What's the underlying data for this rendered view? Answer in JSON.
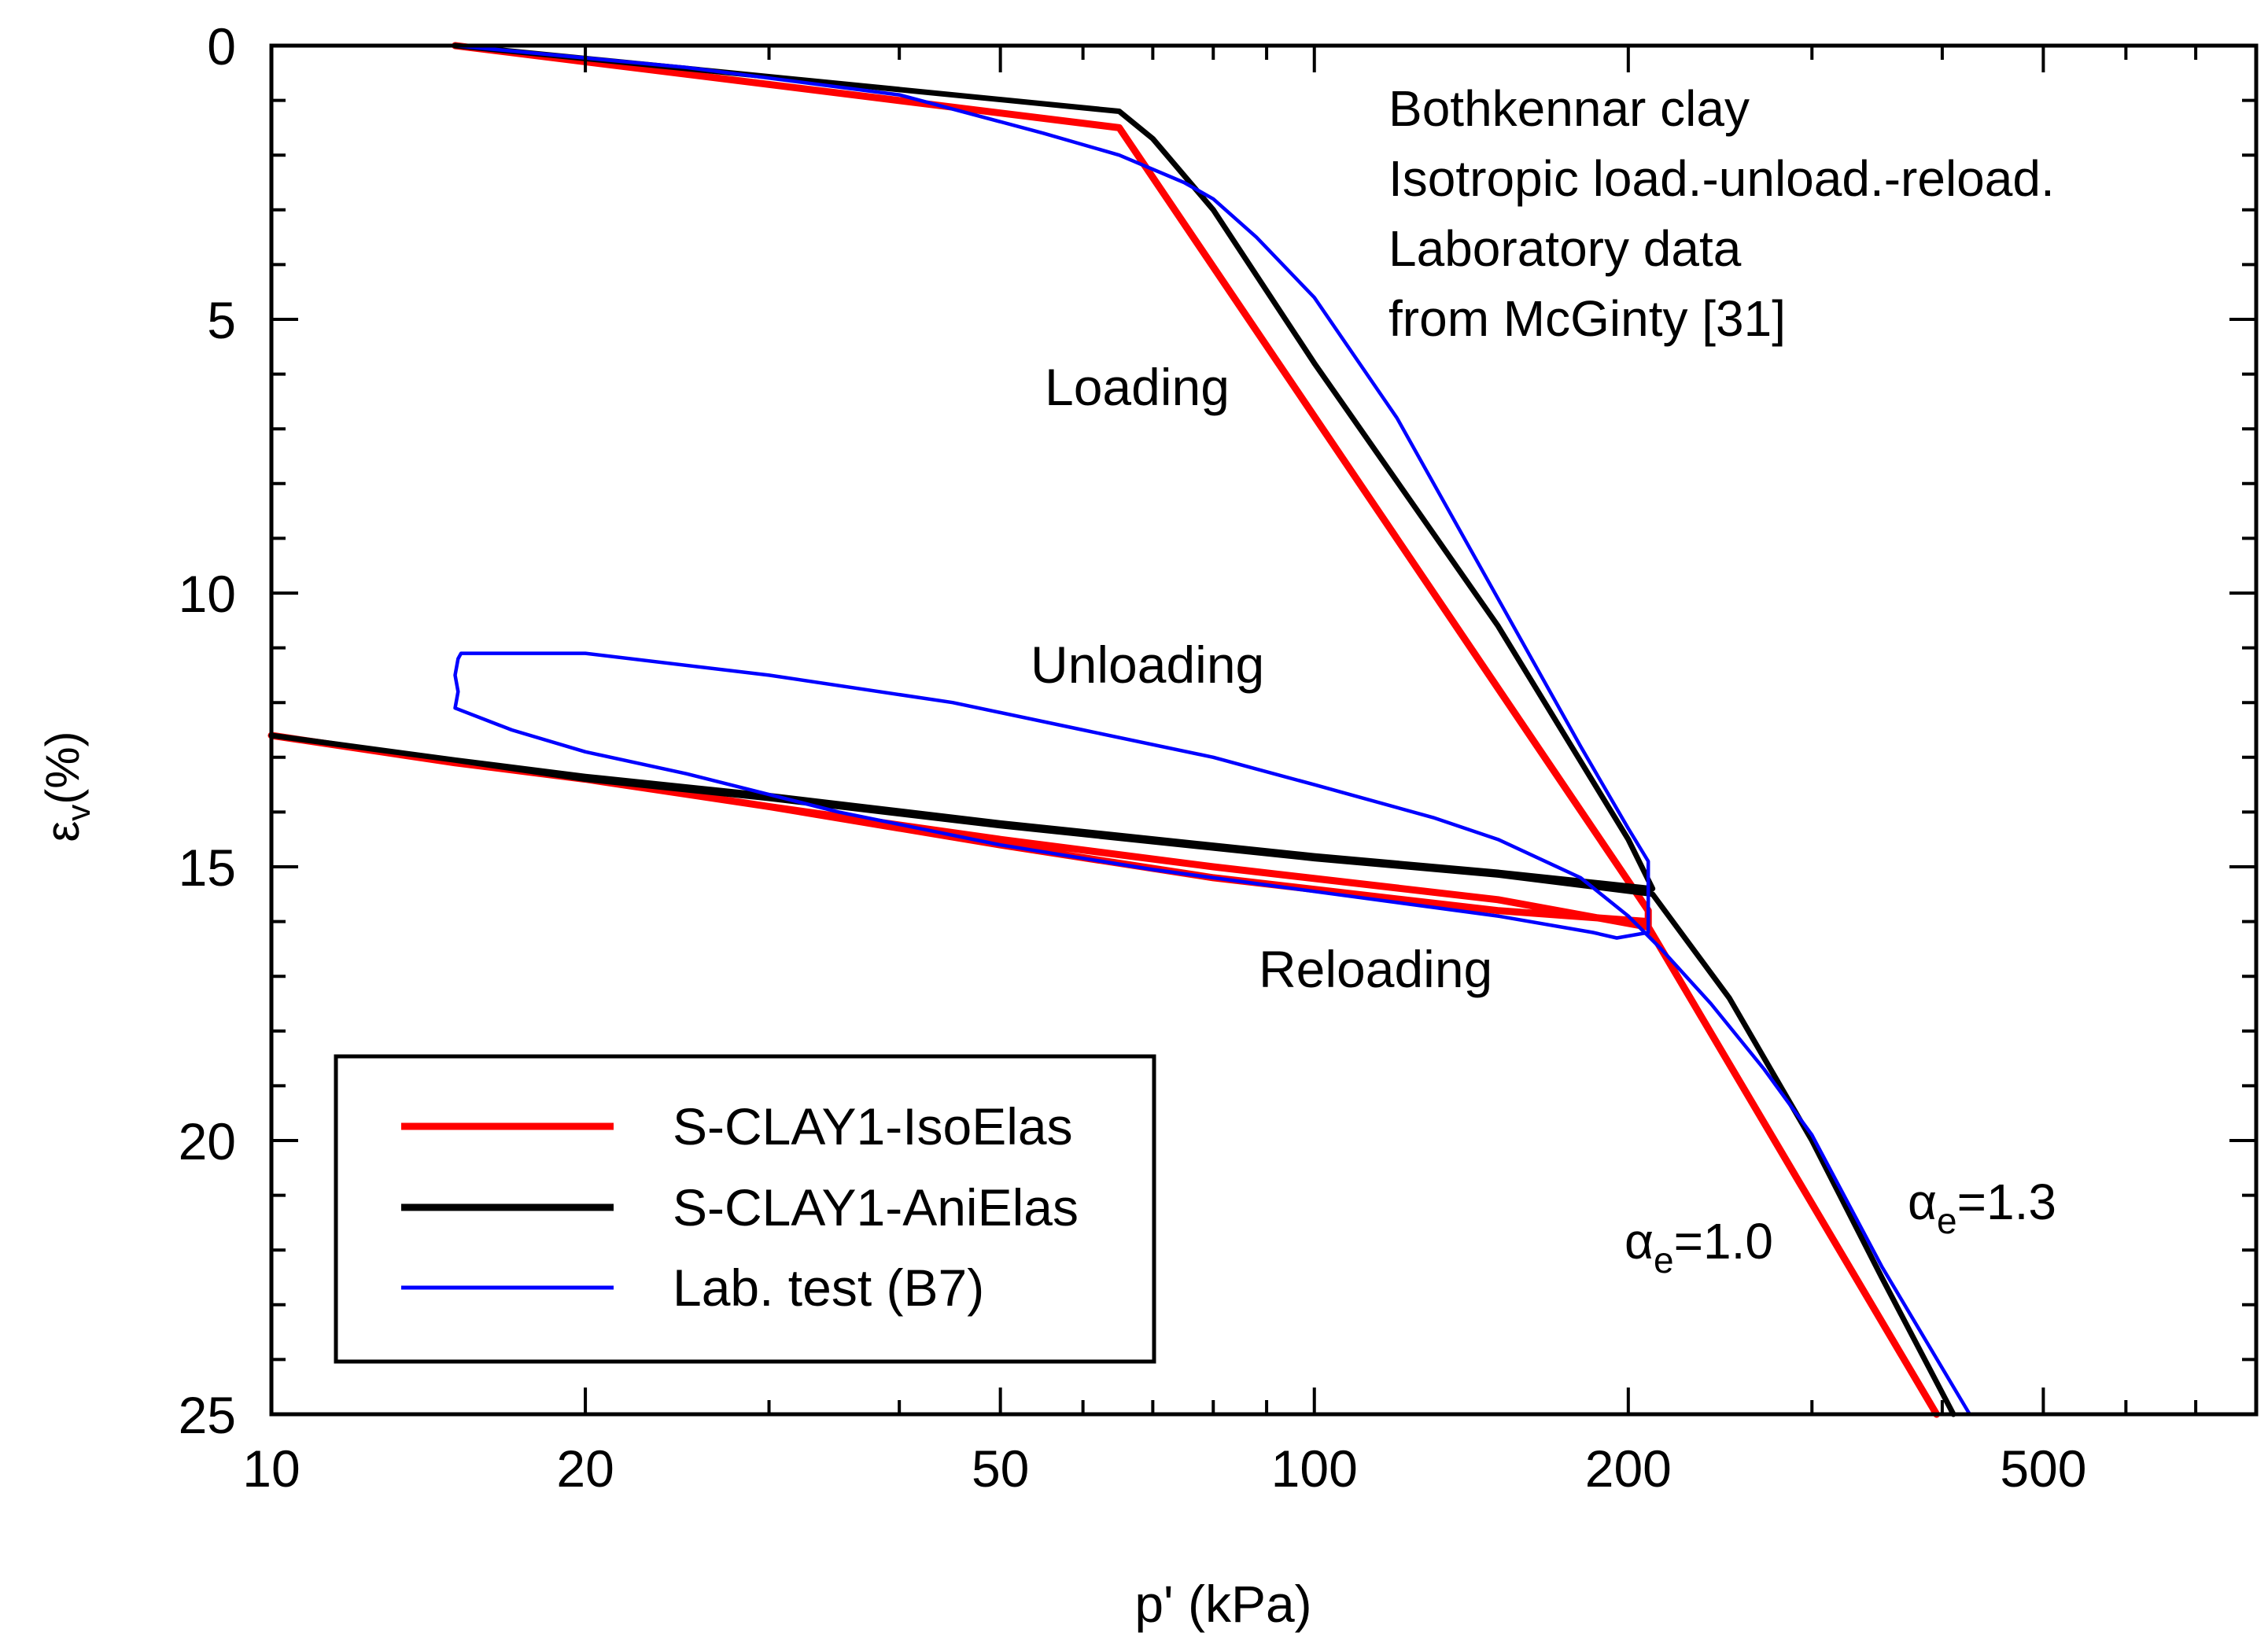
{
  "chart_data": {
    "type": "line",
    "xscale": "log",
    "xlabel": "p' (kPa)",
    "ylabel_main": "ε",
    "ylabel_sub": "v",
    "ylabel_unit": "(%)",
    "xlim": [
      10,
      800
    ],
    "ylim": [
      0,
      25
    ],
    "y_inverted": true,
    "x_ticks": [
      10,
      20,
      50,
      100,
      200,
      500
    ],
    "x_tick_labels": [
      "10",
      "20",
      "50",
      "100",
      "200",
      "500"
    ],
    "y_ticks": [
      0,
      5,
      10,
      15,
      20,
      25
    ],
    "y_tick_labels": [
      "0",
      "5",
      "10",
      "15",
      "20",
      "25"
    ],
    "annotations": {
      "info_line1": "Bothkennar clay",
      "info_line2": "Isotropic load.-unload.-reload.",
      "info_line3": "Laboratory data",
      "info_line4": "from McGinty [31]",
      "loading": "Loading",
      "unloading": "Unloading",
      "reloading": "Reloading",
      "alpha_iso_sym": "α",
      "alpha_iso_sub": "e",
      "alpha_iso_val": "=1.0",
      "alpha_ani_sym": "α",
      "alpha_ani_sub": "e",
      "alpha_ani_val": "=1.3"
    },
    "legend_position": "bottom-left",
    "series": [
      {
        "name": "S-CLAY1-IsoElas",
        "color": "#ff0000",
        "points": [
          [
            15,
            0
          ],
          [
            65,
            1.5
          ],
          [
            209,
            15.8
          ],
          [
            209,
            16.1
          ],
          [
            150,
            15.6
          ],
          [
            80,
            15.0
          ],
          [
            50,
            14.5
          ],
          [
            30,
            13.9
          ],
          [
            20,
            13.4
          ],
          [
            15,
            13.1
          ],
          [
            10,
            12.6
          ],
          [
            10,
            12.6
          ],
          [
            15,
            13.1
          ],
          [
            20,
            13.4
          ],
          [
            30,
            13.9
          ],
          [
            50,
            14.6
          ],
          [
            80,
            15.2
          ],
          [
            150,
            15.8
          ],
          [
            209,
            16.0
          ],
          [
            209,
            16.1
          ],
          [
            395,
            25.0
          ]
        ]
      },
      {
        "name": "S-CLAY1-AniElas",
        "color": "#000000",
        "points": [
          [
            15,
            0
          ],
          [
            65,
            1.2
          ],
          [
            70,
            1.7
          ],
          [
            80,
            3.0
          ],
          [
            100,
            5.8
          ],
          [
            150,
            10.6
          ],
          [
            200,
            14.5
          ],
          [
            211,
            15.4
          ],
          [
            150,
            15.1
          ],
          [
            100,
            14.8
          ],
          [
            50,
            14.2
          ],
          [
            30,
            13.7
          ],
          [
            20,
            13.35
          ],
          [
            15,
            13.05
          ],
          [
            10,
            12.6
          ],
          [
            10,
            12.6
          ],
          [
            15,
            13.05
          ],
          [
            20,
            13.4
          ],
          [
            30,
            13.75
          ],
          [
            50,
            14.25
          ],
          [
            100,
            14.85
          ],
          [
            150,
            15.15
          ],
          [
            211,
            15.5
          ],
          [
            250,
            17.4
          ],
          [
            300,
            20.0
          ],
          [
            350,
            22.5
          ],
          [
            410,
            25.0
          ]
        ]
      },
      {
        "name": "Lab. test (B7)",
        "color": "#0000ff",
        "points": [
          [
            15,
            0
          ],
          [
            25,
            0.4
          ],
          [
            40,
            0.9
          ],
          [
            55,
            1.6
          ],
          [
            65,
            2.0
          ],
          [
            75,
            2.5
          ],
          [
            80,
            2.8
          ],
          [
            88,
            3.5
          ],
          [
            100,
            4.6
          ],
          [
            120,
            6.8
          ],
          [
            150,
            10.1
          ],
          [
            180,
            12.8
          ],
          [
            200,
            14.3
          ],
          [
            209,
            14.9
          ],
          [
            209,
            16.2
          ],
          [
            195,
            16.3
          ],
          [
            185,
            16.2
          ],
          [
            150,
            15.9
          ],
          [
            100,
            15.45
          ],
          [
            70,
            15.05
          ],
          [
            50,
            14.6
          ],
          [
            35,
            14.0
          ],
          [
            25,
            13.3
          ],
          [
            20,
            12.9
          ],
          [
            17,
            12.5
          ],
          [
            15,
            12.1
          ],
          [
            15.1,
            11.8
          ],
          [
            15,
            11.5
          ],
          [
            15.1,
            11.2
          ],
          [
            15.2,
            11.1
          ],
          [
            20,
            11.1
          ],
          [
            30,
            11.5
          ],
          [
            45,
            12.0
          ],
          [
            60,
            12.5
          ],
          [
            80,
            13.0
          ],
          [
            100,
            13.5
          ],
          [
            130,
            14.1
          ],
          [
            150,
            14.5
          ],
          [
            180,
            15.2
          ],
          [
            200,
            15.9
          ],
          [
            215,
            16.5
          ],
          [
            240,
            17.5
          ],
          [
            270,
            18.7
          ],
          [
            300,
            19.9
          ],
          [
            350,
            22.3
          ],
          [
            425,
            25.0
          ]
        ]
      }
    ]
  }
}
